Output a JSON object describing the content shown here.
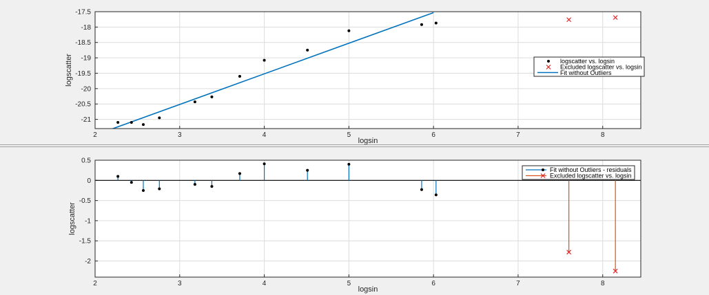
{
  "colors": {
    "fit": "#0072bd",
    "excluded": "#d95319",
    "data": "#000000",
    "grid": "#dcdcdc",
    "axes_bg": "#ffffff",
    "figure_bg": "#f0f0f0"
  },
  "chart_data": [
    {
      "type": "scatter",
      "xlabel": "logsin",
      "ylabel": "logscatter",
      "xlim": [
        2,
        8.45
      ],
      "ylim": [
        -21.3,
        -17.5
      ],
      "xticks": [
        2,
        3,
        4,
        5,
        6,
        7,
        8
      ],
      "yticks": [
        -21,
        -20.5,
        -20,
        -19.5,
        -19,
        -18.5,
        -18,
        -17.5
      ],
      "grid": true,
      "legend_position": "right",
      "legend": [
        "logscatter vs. logsin",
        "Excluded logscatter vs. logsin",
        "Fit without Outliers"
      ],
      "series": [
        {
          "name": "logscatter vs. logsin",
          "x": [
            2.27,
            2.43,
            2.57,
            2.76,
            3.18,
            3.38,
            3.71,
            4.0,
            4.51,
            5.0,
            5.86,
            6.03
          ],
          "y": [
            -21.1,
            -21.1,
            -21.17,
            -20.95,
            -20.43,
            -20.27,
            -19.6,
            -19.08,
            -18.75,
            -18.12,
            -17.92,
            -17.87
          ]
        },
        {
          "name": "Excluded logscatter vs. logsin",
          "x": [
            7.6,
            8.15
          ],
          "y": [
            -17.76,
            -17.69
          ]
        },
        {
          "name": "Fit without Outliers",
          "type": "line",
          "x": [
            2.0,
            6.0
          ],
          "y": [
            -21.51,
            -17.53
          ]
        }
      ]
    },
    {
      "type": "stem",
      "xlabel": "logsin",
      "ylabel": "logscatter",
      "xlim": [
        2,
        8.45
      ],
      "ylim": [
        -2.4,
        0.5
      ],
      "xticks": [
        2,
        3,
        4,
        5,
        6,
        7,
        8
      ],
      "yticks": [
        -2,
        -1.5,
        -1,
        -0.5,
        0,
        0.5
      ],
      "ytick_labels": [
        "-2",
        "-1.5",
        "-1",
        "-0.5",
        "0",
        "0.5"
      ],
      "grid": true,
      "legend_position": "top-right",
      "legend": [
        "Fit without Outliers - residuals",
        "Excluded logscatter vs. logsin"
      ],
      "series": [
        {
          "name": "Fit without Outliers - residuals",
          "x": [
            2.27,
            2.43,
            2.57,
            2.76,
            3.18,
            3.38,
            3.71,
            4.0,
            4.51,
            5.0,
            5.86,
            6.03
          ],
          "y": [
            0.1,
            -0.05,
            -0.25,
            -0.21,
            -0.1,
            -0.15,
            0.17,
            0.41,
            0.25,
            0.4,
            -0.23,
            -0.36
          ]
        },
        {
          "name": "Excluded logscatter vs. logsin",
          "x": [
            7.6,
            8.15
          ],
          "y": [
            -1.78,
            -2.25
          ]
        }
      ]
    }
  ]
}
